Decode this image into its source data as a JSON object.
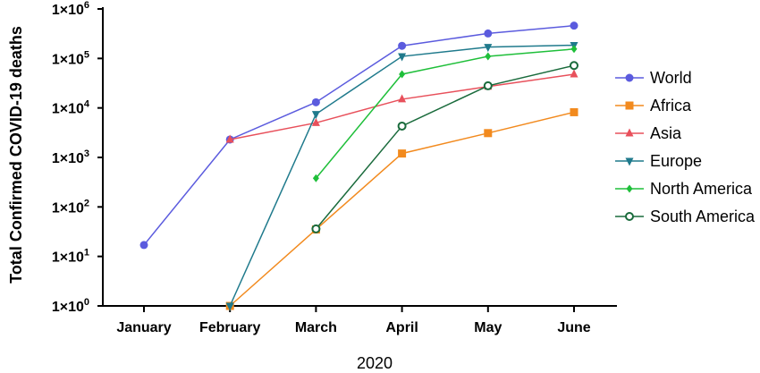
{
  "chart_data": {
    "type": "line",
    "title": "",
    "xlabel": "2020",
    "ylabel": "Total Confirmed COVID-19 deaths",
    "yscale": "log",
    "ylim": [
      1,
      1000000
    ],
    "y_ticks": [
      {
        "value": 1,
        "base": "1×10",
        "exp": "0"
      },
      {
        "value": 10,
        "base": "1×10",
        "exp": "1"
      },
      {
        "value": 100,
        "base": "1×10",
        "exp": "2"
      },
      {
        "value": 1000,
        "base": "1×10",
        "exp": "3"
      },
      {
        "value": 10000,
        "base": "1×10",
        "exp": "4"
      },
      {
        "value": 100000,
        "base": "1×10",
        "exp": "5"
      },
      {
        "value": 1000000,
        "base": "1×10",
        "exp": "6"
      }
    ],
    "categories": [
      "January",
      "February",
      "March",
      "April",
      "May",
      "June"
    ],
    "grid": false,
    "legend_position": "right",
    "series": [
      {
        "name": "World",
        "color": "#5b5bde",
        "marker": "circle",
        "values": [
          17,
          2300,
          13000,
          180000,
          320000,
          460000
        ]
      },
      {
        "name": "Africa",
        "color": "#f28a1e",
        "marker": "square",
        "values": [
          null,
          1,
          35,
          1200,
          3100,
          8200
        ]
      },
      {
        "name": "Asia",
        "color": "#e8505b",
        "marker": "triangle-up",
        "values": [
          null,
          2300,
          5000,
          15000,
          27000,
          48000
        ]
      },
      {
        "name": "Europe",
        "color": "#1f7a8c",
        "marker": "triangle-down",
        "values": [
          null,
          1,
          7500,
          110000,
          170000,
          185000
        ]
      },
      {
        "name": "North America",
        "color": "#1fbf3a",
        "marker": "diamond",
        "values": [
          null,
          null,
          380,
          48000,
          110000,
          155000
        ]
      },
      {
        "name": "South America",
        "color": "#1a6b3c",
        "marker": "open-circle",
        "values": [
          null,
          null,
          36,
          4300,
          28000,
          72000
        ]
      }
    ]
  }
}
